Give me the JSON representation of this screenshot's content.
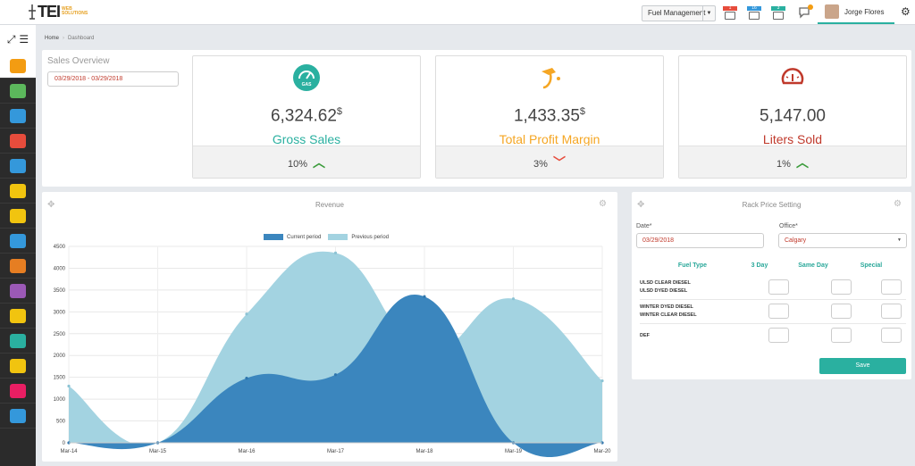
{
  "header": {
    "logo_text": "TEI",
    "logo_sub": "WEB SOLUTIONS",
    "module_select": "Fuel Management",
    "notifications": [
      {
        "icon": "flag-icon",
        "count": "1",
        "color": "#e74c3c"
      },
      {
        "icon": "calendar-icon",
        "count": "16",
        "color": "#3498db"
      },
      {
        "icon": "inbox-icon",
        "count": "3",
        "color": "#2ab0a0"
      },
      {
        "icon": "chat-icon",
        "count": "0",
        "color": "#f39c12"
      }
    ],
    "user_name": "Jorge Flores"
  },
  "breadcrumb": {
    "home": "Home",
    "current": "Dashboard"
  },
  "sales_overview": {
    "title": "Sales Overview",
    "date_range": "03/29/2018 - 03/29/2018"
  },
  "kpis": [
    {
      "value": "6,324.62",
      "unit": "$",
      "label": "Gross Sales",
      "change": "10%",
      "direction": "up",
      "color": "#2ab0a0",
      "icon": "gas-gauge-icon"
    },
    {
      "value": "1,433.35",
      "unit": "$",
      "label": "Total Profit Margin",
      "change": "3%",
      "direction": "down",
      "color": "#f5a623",
      "icon": "fuel-nozzle-icon"
    },
    {
      "value": "5,147.00",
      "unit": "",
      "label": "Liters Sold",
      "change": "1%",
      "direction": "up",
      "color": "#c0392b",
      "icon": "speedometer-icon"
    }
  ],
  "revenue": {
    "title": "Revenue"
  },
  "chart_data": {
    "type": "area",
    "title": "Revenue",
    "x": [
      "Mar-14",
      "Mar-15",
      "Mar-16",
      "Mar-17",
      "Mar-18",
      "Mar-19",
      "Mar-20"
    ],
    "series": [
      {
        "name": "Current period",
        "values": [
          0,
          0,
          1480,
          1560,
          3350,
          0,
          0
        ],
        "color": "#3b86be"
      },
      {
        "name": "Previous period",
        "values": [
          1300,
          0,
          2950,
          4350,
          2100,
          3300,
          1420
        ],
        "color": "#a3d3e1"
      }
    ],
    "ylim": [
      0,
      4500
    ],
    "yticks": [
      0,
      500,
      1000,
      1500,
      2000,
      2500,
      3000,
      3500,
      4000,
      4500
    ],
    "legend": "top-center",
    "grid": true
  },
  "rack_price": {
    "title": "Rack Price Setting",
    "date_label": "Date*",
    "date_value": "03/29/2018",
    "office_label": "Office*",
    "office_value": "Calgary",
    "columns": [
      "Fuel Type",
      "3 Day",
      "Same Day",
      "Special"
    ],
    "rows": [
      {
        "lines": [
          "ULSD CLEAR DIESEL",
          "ULSD DYED DIESEL"
        ]
      },
      {
        "lines": [
          "WINTER DYED DIESEL",
          "WINTER CLEAR DIESEL"
        ]
      },
      {
        "lines": [
          "DEF"
        ]
      }
    ],
    "save_label": "Save"
  },
  "sidebar": {
    "items": [
      {
        "icon": "dashboard-icon",
        "color": "#f39c12"
      },
      {
        "icon": "cart-icon",
        "color": "#5cb85c"
      },
      {
        "icon": "flag-icon",
        "color": "#3498db"
      },
      {
        "icon": "invoice-icon",
        "color": "#e74c3c"
      },
      {
        "icon": "building-icon",
        "color": "#3498db"
      },
      {
        "icon": "sliders-icon",
        "color": "#f1c40f"
      },
      {
        "icon": "card-icon",
        "color": "#f1c40f"
      },
      {
        "icon": "report-icon",
        "color": "#3498db"
      },
      {
        "icon": "truck-icon",
        "color": "#e67e22"
      },
      {
        "icon": "brain-icon",
        "color": "#9b59b6"
      },
      {
        "icon": "monitor-icon",
        "color": "#f1c40f"
      },
      {
        "icon": "drop-icon",
        "color": "#2ab0a0"
      },
      {
        "icon": "settings-icon",
        "color": "#f1c40f"
      },
      {
        "icon": "pump-icon",
        "color": "#e91e63"
      },
      {
        "icon": "cards-icon",
        "color": "#3498db"
      }
    ]
  }
}
